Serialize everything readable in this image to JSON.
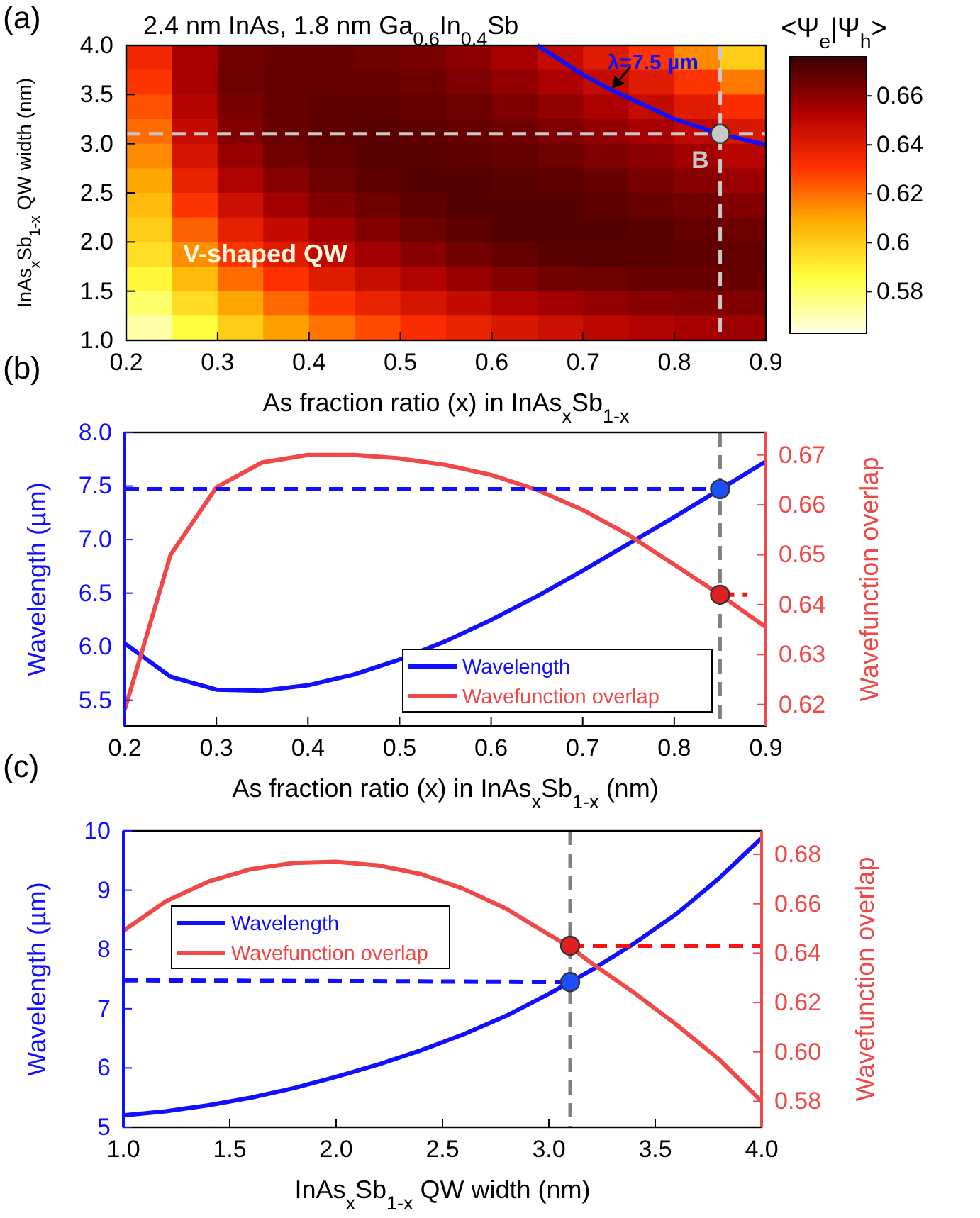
{
  "chart_data": [
    {
      "type": "heatmap",
      "title": "2.4 nm InAs, 1.8 nm Ga$_{0.6}$In$_{0.4}$Sb",
      "xlabel": "As fraction ratio (x) in InAs$_{x}$Sb$_{1-x}$",
      "ylabel": "InAs$_{x}$Sb$_{1-x}$ QW width (nm)",
      "clabel": "<Ψ$_{e}$|Ψ$_{h}$>",
      "xlim": [
        0.2,
        0.9
      ],
      "xticks": [
        0.2,
        0.3,
        0.4,
        0.5,
        0.6,
        0.7,
        0.8,
        0.9
      ],
      "ylim": [
        1.0,
        4.0
      ],
      "yticks": [
        {
          "value": 1,
          "label": "1.0"
        },
        1.5,
        {
          "value": 2,
          "label": "2.0"
        },
        2.5,
        {
          "value": 3,
          "label": "3.0"
        },
        3.5,
        {
          "value": 4,
          "label": "4.0"
        }
      ],
      "clim": [
        0.563,
        0.676
      ],
      "cticks": [
        0.58,
        0.6,
        0.62,
        0.64,
        0.66
      ],
      "cells": [
        [
          0.635,
          0.655,
          0.665,
          0.667,
          0.667,
          0.666,
          0.664,
          0.66,
          0.655,
          0.648,
          0.64,
          0.63,
          0.615,
          0.6
        ],
        [
          0.63,
          0.655,
          0.666,
          0.668,
          0.668,
          0.667,
          0.666,
          0.663,
          0.659,
          0.654,
          0.648,
          0.64,
          0.63,
          0.618
        ],
        [
          0.625,
          0.652,
          0.664,
          0.668,
          0.669,
          0.669,
          0.668,
          0.666,
          0.663,
          0.659,
          0.654,
          0.648,
          0.64,
          0.632
        ],
        [
          0.62,
          0.648,
          0.662,
          0.667,
          0.669,
          0.67,
          0.669,
          0.668,
          0.666,
          0.663,
          0.659,
          0.655,
          0.649,
          0.642
        ],
        [
          0.615,
          0.643,
          0.658,
          0.665,
          0.668,
          0.67,
          0.67,
          0.669,
          0.668,
          0.666,
          0.663,
          0.66,
          0.656,
          0.651
        ],
        [
          0.61,
          0.637,
          0.653,
          0.661,
          0.666,
          0.669,
          0.671,
          0.671,
          0.67,
          0.669,
          0.667,
          0.664,
          0.661,
          0.657
        ],
        [
          0.605,
          0.63,
          0.646,
          0.656,
          0.662,
          0.666,
          0.669,
          0.671,
          0.671,
          0.671,
          0.669,
          0.667,
          0.665,
          0.662
        ],
        [
          0.6,
          0.622,
          0.638,
          0.648,
          0.656,
          0.662,
          0.666,
          0.669,
          0.671,
          0.671,
          0.671,
          0.67,
          0.668,
          0.666
        ],
        [
          0.595,
          0.614,
          0.63,
          0.64,
          0.649,
          0.656,
          0.661,
          0.665,
          0.668,
          0.67,
          0.67,
          0.67,
          0.669,
          0.668
        ],
        [
          0.588,
          0.605,
          0.62,
          0.631,
          0.64,
          0.647,
          0.653,
          0.658,
          0.662,
          0.665,
          0.666,
          0.667,
          0.667,
          0.667
        ],
        [
          0.58,
          0.596,
          0.61,
          0.621,
          0.63,
          0.637,
          0.643,
          0.648,
          0.653,
          0.656,
          0.659,
          0.661,
          0.662,
          0.663
        ],
        [
          0.572,
          0.586,
          0.6,
          0.611,
          0.619,
          0.626,
          0.632,
          0.637,
          0.642,
          0.646,
          0.65,
          0.653,
          0.655,
          0.657
        ]
      ],
      "series": [
        {
          "type": "line",
          "color": "#1010ff",
          "x": [
            0.65,
            0.7,
            0.73,
            0.77,
            0.8,
            0.85,
            0.9
          ],
          "values": [
            4.0,
            3.7,
            3.55,
            3.38,
            3.25,
            3.1,
            2.99
          ]
        },
        {
          "type": "scatter",
          "color": "#c8c8c8",
          "marker": "circle",
          "x": [
            0.85
          ],
          "values": [
            3.1
          ]
        }
      ],
      "ref_lines": [
        {
          "axis": "x",
          "value": 0.85,
          "color": "#c8c8c8",
          "line_style": "dashed"
        },
        {
          "axis": "y",
          "value": 3.1,
          "color": "#c8c8c8",
          "line_style": "dashed"
        }
      ],
      "annotations": [
        "(a)",
        "V-shaped QW",
        {
          "text": "λ=7.5 µm",
          "x": 0.73,
          "y": 3.55
        },
        {
          "text": "B",
          "x": 0.85,
          "y": 3.1
        }
      ]
    },
    {
      "type": "line",
      "xlabel": "As fraction ratio (x) in InAs$_{x}$Sb$_{1-x}$ (nm)",
      "ylabel": "Wavelength (µm)",
      "y2label": "Wavefunction overlap",
      "x": [
        0.2,
        0.25,
        0.3,
        0.35,
        0.4,
        0.45,
        0.5,
        0.55,
        0.6,
        0.65,
        0.7,
        0.75,
        0.8,
        0.85,
        0.9
      ],
      "xlim": [
        0.2,
        0.9
      ],
      "xticks": [
        0.2,
        0.3,
        0.4,
        0.5,
        0.6,
        0.7,
        0.8,
        0.9
      ],
      "ylim": [
        5.26,
        8.0
      ],
      "yticks": [
        5.5,
        {
          "value": 6,
          "label": "6.0"
        },
        6.5,
        {
          "value": 7,
          "label": "7.0"
        },
        7.5,
        {
          "value": 8,
          "label": "8.0"
        }
      ],
      "y2lim": [
        0.6157,
        0.6745
      ],
      "y2ticks": [
        0.62,
        0.63,
        0.64,
        0.65,
        0.66,
        0.67
      ],
      "series": [
        {
          "name": "Wavelength",
          "color": "#1010ff",
          "values": [
            6.03,
            5.72,
            5.6,
            5.59,
            5.64,
            5.74,
            5.88,
            6.05,
            6.25,
            6.47,
            6.71,
            6.96,
            7.21,
            7.47,
            7.73
          ]
        },
        {
          "name": "Wavefunction overlap",
          "color": "#f04848",
          "axis": "y2",
          "values": [
            0.619,
            0.65,
            0.6635,
            0.6685,
            0.67,
            0.67,
            0.6693,
            0.668,
            0.666,
            0.663,
            0.659,
            0.654,
            0.648,
            0.642,
            0.6355
          ]
        },
        {
          "type": "line",
          "color": "#1010ff",
          "line_style": "dashed",
          "x": [
            0.2,
            0.85
          ],
          "values": [
            7.47,
            7.47
          ]
        },
        {
          "type": "line",
          "color": "#ff1010",
          "line_style": "dashed",
          "axis": "y2",
          "x": [
            0.85,
            0.88
          ],
          "values": [
            0.642,
            0.642
          ]
        },
        {
          "type": "scatter",
          "color": "#1a50ff",
          "marker": "circle",
          "x": [
            0.85
          ],
          "values": [
            7.47
          ]
        },
        {
          "type": "scatter",
          "color": "#e02020",
          "marker": "circle",
          "axis": "y2",
          "x": [
            0.85
          ],
          "values": [
            0.642
          ]
        }
      ],
      "ref_lines": [
        {
          "axis": "x",
          "value": 0.85,
          "color": "#808080",
          "line_style": "dashed"
        }
      ],
      "legend": "bottom right",
      "annotations": [
        "(b)"
      ]
    },
    {
      "type": "line",
      "xlabel": "InAs$_{x}$Sb$_{1-x}$ QW width (nm)",
      "ylabel": "Wavelength (µm)",
      "y2label": "Wavefunction overlap",
      "x": [
        1.0,
        1.2,
        1.4,
        1.6,
        1.8,
        2.0,
        2.2,
        2.4,
        2.6,
        2.8,
        3.0,
        3.1,
        3.2,
        3.4,
        3.6,
        3.8,
        4.0
      ],
      "xlim": [
        1.0,
        4.0
      ],
      "xticks": [
        {
          "value": 1,
          "label": "1.0"
        },
        1.5,
        {
          "value": 2,
          "label": "2.0"
        },
        2.5,
        {
          "value": 3,
          "label": "3.0"
        },
        3.5,
        {
          "value": 4,
          "label": "4.0"
        }
      ],
      "ylim": [
        5,
        10
      ],
      "yticks": [
        5,
        6,
        7,
        8,
        9,
        10
      ],
      "y2lim": [
        0.5695,
        0.6895
      ],
      "y2ticks": [
        0.58,
        {
          "value": 0.6,
          "label": "0.60"
        },
        0.62,
        0.64,
        0.66,
        0.68
      ],
      "series": [
        {
          "name": "Wavelength",
          "color": "#1010ff",
          "values": [
            5.2,
            5.27,
            5.37,
            5.5,
            5.66,
            5.85,
            6.06,
            6.3,
            6.57,
            6.88,
            7.25,
            7.45,
            7.65,
            8.1,
            8.6,
            9.2,
            9.88
          ]
        },
        {
          "name": "Wavefunction overlap",
          "color": "#f04848",
          "axis": "y2",
          "values": [
            0.649,
            0.661,
            0.669,
            0.674,
            0.6765,
            0.677,
            0.6755,
            0.672,
            0.666,
            0.658,
            0.6475,
            0.6425,
            0.636,
            0.624,
            0.611,
            0.597,
            0.58
          ]
        },
        {
          "type": "line",
          "color": "#1010ff",
          "line_style": "dashed",
          "x": [
            1.0,
            3.1
          ],
          "values": [
            7.48,
            7.45
          ]
        },
        {
          "type": "line",
          "color": "#ff1010",
          "line_style": "dashed",
          "axis": "y2",
          "x": [
            3.1,
            4.0
          ],
          "values": [
            0.643,
            0.643
          ]
        },
        {
          "type": "scatter",
          "color": "#1a50ff",
          "marker": "circle",
          "x": [
            3.1
          ],
          "values": [
            7.45
          ]
        },
        {
          "type": "scatter",
          "color": "#e02020",
          "marker": "circle",
          "axis": "y2",
          "x": [
            3.1
          ],
          "values": [
            0.643
          ]
        }
      ],
      "ref_lines": [
        {
          "axis": "x",
          "value": 3.1,
          "color": "#808080",
          "line_style": "dashed"
        }
      ],
      "legend": "top left",
      "annotations": [
        "(c)"
      ]
    }
  ]
}
